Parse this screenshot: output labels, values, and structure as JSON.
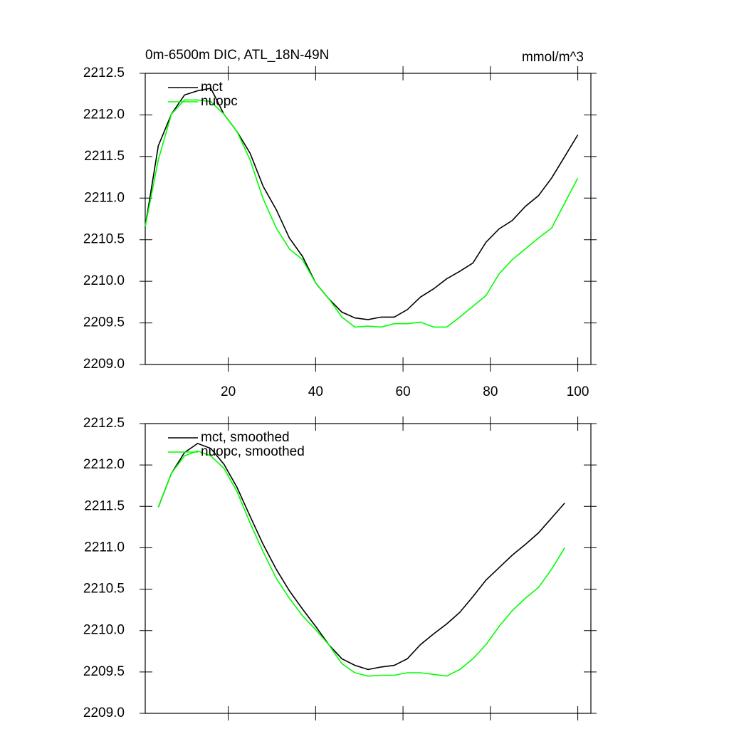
{
  "chart_data": [
    {
      "type": "line",
      "title": "0m-6500m DIC, ATL_18N-49N",
      "subtitle": "mmol/m^3",
      "x": [
        1,
        4,
        7,
        10,
        13,
        16,
        19,
        22,
        25,
        28,
        31,
        34,
        37,
        40,
        43,
        46,
        49,
        52,
        55,
        58,
        61,
        64,
        67,
        70,
        73,
        76,
        79,
        82,
        85,
        88,
        91,
        94,
        97,
        100
      ],
      "series": [
        {
          "name": "mct",
          "color": "#000000",
          "values": [
            2210.66,
            2211.63,
            2212.01,
            2212.24,
            2212.29,
            2212.32,
            2212.01,
            2211.8,
            2211.54,
            2211.14,
            2210.86,
            2210.52,
            2210.3,
            2209.98,
            2209.79,
            2209.63,
            2209.56,
            2209.54,
            2209.57,
            2209.57,
            2209.66,
            2209.81,
            2209.91,
            2210.03,
            2210.12,
            2210.22,
            2210.47,
            2210.63,
            2210.73,
            2210.9,
            2211.03,
            2211.24,
            2211.5,
            2211.76
          ]
        },
        {
          "name": "nuopc",
          "color": "#00ff00",
          "values": [
            2210.66,
            2211.46,
            2212.01,
            2212.18,
            2212.18,
            2212.16,
            2212.01,
            2211.8,
            2211.46,
            2210.99,
            2210.64,
            2210.39,
            2210.26,
            2209.98,
            2209.79,
            2209.57,
            2209.45,
            2209.46,
            2209.45,
            2209.49,
            2209.49,
            2209.51,
            2209.45,
            2209.45,
            2209.57,
            2209.7,
            2209.83,
            2210.09,
            2210.26,
            2210.39,
            2210.52,
            2210.64,
            2210.94,
            2211.24
          ]
        }
      ],
      "xlim": [
        1,
        103
      ],
      "xticks": [
        20,
        40,
        60,
        80,
        100
      ],
      "ylim": [
        2209,
        2212.5
      ],
      "yticks": [
        {
          "value": 2209,
          "label": "2209.0"
        },
        2209.5,
        {
          "value": 2210,
          "label": "2210.0"
        },
        2210.5,
        {
          "value": 2211,
          "label": "2211.0"
        },
        2211.5,
        {
          "value": 2212,
          "label": "2212.0"
        },
        2212.5
      ],
      "legend": "top-left"
    },
    {
      "type": "line",
      "x": [
        4,
        7,
        10,
        13,
        16,
        19,
        22,
        25,
        28,
        31,
        34,
        37,
        40,
        43,
        46,
        49,
        52,
        55,
        58,
        61,
        64,
        67,
        70,
        73,
        76,
        79,
        82,
        85,
        88,
        91,
        94,
        97
      ],
      "series": [
        {
          "name": "mct, smoothed",
          "color": "#000000",
          "values": [
            2211.49,
            2211.9,
            2212.15,
            2212.26,
            2212.2,
            2212.01,
            2211.73,
            2211.38,
            2211.04,
            2210.74,
            2210.48,
            2210.26,
            2210.05,
            2209.83,
            2209.66,
            2209.58,
            2209.53,
            2209.56,
            2209.58,
            2209.66,
            2209.83,
            2209.96,
            2210.08,
            2210.22,
            2210.41,
            2210.61,
            2210.76,
            2210.91,
            2211.04,
            2211.18,
            2211.36,
            2211.54
          ]
        },
        {
          "name": "nuopc, smoothed",
          "color": "#00ff00",
          "values": [
            2211.49,
            2211.9,
            2212.11,
            2212.17,
            2212.11,
            2211.96,
            2211.68,
            2211.3,
            2210.95,
            2210.63,
            2210.39,
            2210.18,
            2210.01,
            2209.83,
            2209.6,
            2209.49,
            2209.45,
            2209.46,
            2209.46,
            2209.49,
            2209.49,
            2209.47,
            2209.45,
            2209.53,
            2209.66,
            2209.83,
            2210.05,
            2210.24,
            2210.39,
            2210.52,
            2210.74,
            2211.0
          ]
        }
      ],
      "xlim": [
        1,
        103
      ],
      "xticks": [
        {
          "value": 20,
          "label": null
        },
        {
          "value": 40,
          "label": null
        },
        {
          "value": 60,
          "label": null
        },
        {
          "value": 80,
          "label": null
        },
        {
          "value": 100,
          "label": null
        }
      ],
      "ylim": [
        2209,
        2212.5
      ],
      "yticks": [
        {
          "value": 2209,
          "label": "2209.0"
        },
        2209.5,
        {
          "value": 2210,
          "label": "2210.0"
        },
        2210.5,
        {
          "value": 2211,
          "label": "2211.0"
        },
        2211.5,
        {
          "value": 2212,
          "label": "2212.0"
        },
        2212.5
      ],
      "legend": "top-left"
    }
  ]
}
